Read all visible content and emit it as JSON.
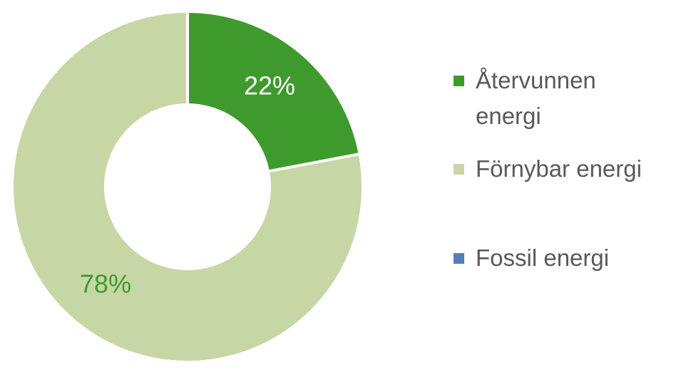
{
  "chart_data": {
    "type": "donut",
    "categories": [
      "Återvunnen energi",
      "Förnybar energi",
      "Fossil energi"
    ],
    "series": [
      {
        "values": [
          22,
          78,
          0
        ],
        "value_labels": [
          "22%",
          "78%",
          null
        ],
        "colors": [
          "#3f9a2e",
          "#c7d6a5",
          "#4f7fbe"
        ],
        "label_colors": [
          "#ffffff",
          "#3f9a2e",
          null
        ]
      }
    ],
    "legend": "right"
  }
}
